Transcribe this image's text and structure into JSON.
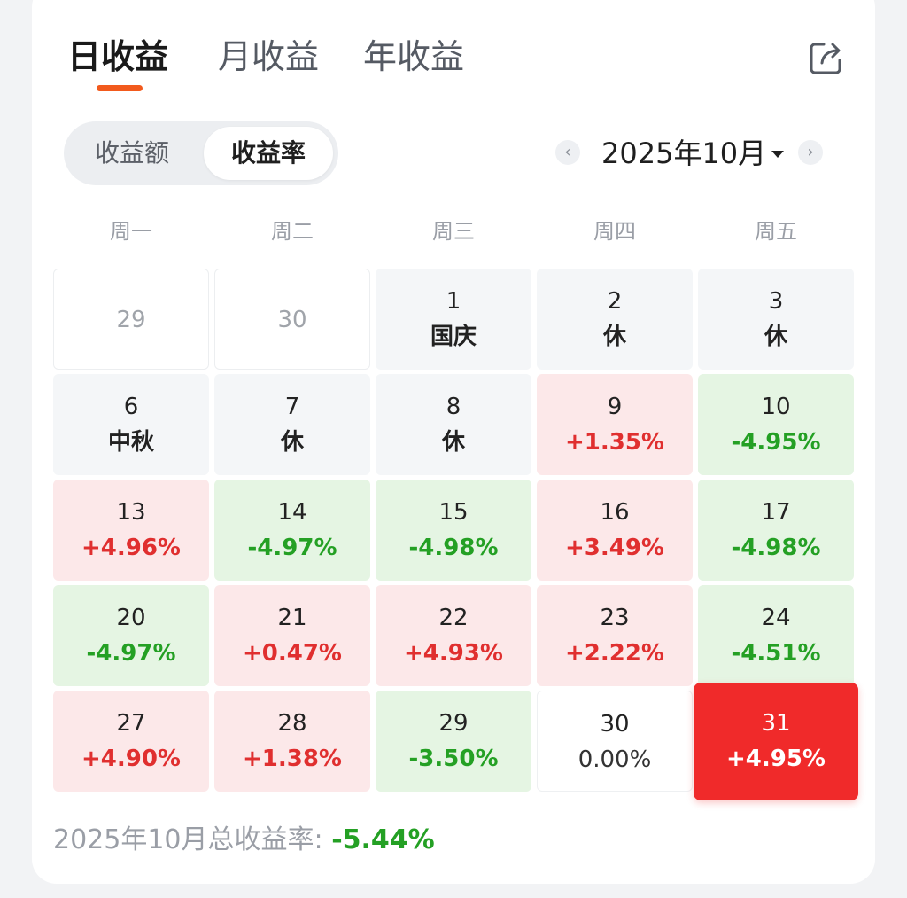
{
  "tabs": [
    {
      "label": "日收益",
      "active": true
    },
    {
      "label": "月收益",
      "active": false
    },
    {
      "label": "年收益",
      "active": false
    }
  ],
  "share_icon": "share-external-icon",
  "segment": {
    "amount_label": "收益额",
    "rate_label": "收益率",
    "selected": "rate"
  },
  "month_nav": {
    "prev_icon": "chevron-left-icon",
    "label": "2025年10月",
    "dropdown_icon": "caret-down-icon",
    "next_icon": "chevron-right-icon"
  },
  "weekdays": [
    "周一",
    "周二",
    "周三",
    "周四",
    "周五"
  ],
  "colors": {
    "up": "#e02f2f",
    "down": "#24a024",
    "up_bg": "#fce8e9",
    "down_bg": "#e5f5e3",
    "selected_bg": "#f02a2a",
    "tab_accent": "#f25a1d"
  },
  "calendar": [
    [
      {
        "day": "29",
        "value": "",
        "kind": "other"
      },
      {
        "day": "30",
        "value": "",
        "kind": "other"
      },
      {
        "day": "1",
        "value": "国庆",
        "kind": "holiday"
      },
      {
        "day": "2",
        "value": "休",
        "kind": "holiday"
      },
      {
        "day": "3",
        "value": "休",
        "kind": "holiday"
      }
    ],
    [
      {
        "day": "6",
        "value": "中秋",
        "kind": "holiday"
      },
      {
        "day": "7",
        "value": "休",
        "kind": "holiday"
      },
      {
        "day": "8",
        "value": "休",
        "kind": "holiday"
      },
      {
        "day": "9",
        "value": "+1.35%",
        "kind": "up"
      },
      {
        "day": "10",
        "value": "-4.95%",
        "kind": "down"
      }
    ],
    [
      {
        "day": "13",
        "value": "+4.96%",
        "kind": "up"
      },
      {
        "day": "14",
        "value": "-4.97%",
        "kind": "down"
      },
      {
        "day": "15",
        "value": "-4.98%",
        "kind": "down"
      },
      {
        "day": "16",
        "value": "+3.49%",
        "kind": "up"
      },
      {
        "day": "17",
        "value": "-4.98%",
        "kind": "down"
      }
    ],
    [
      {
        "day": "20",
        "value": "-4.97%",
        "kind": "down"
      },
      {
        "day": "21",
        "value": "+0.47%",
        "kind": "up"
      },
      {
        "day": "22",
        "value": "+4.93%",
        "kind": "up"
      },
      {
        "day": "23",
        "value": "+2.22%",
        "kind": "up"
      },
      {
        "day": "24",
        "value": "-4.51%",
        "kind": "down"
      }
    ],
    [
      {
        "day": "27",
        "value": "+4.90%",
        "kind": "up"
      },
      {
        "day": "28",
        "value": "+1.38%",
        "kind": "up"
      },
      {
        "day": "29",
        "value": "-3.50%",
        "kind": "down"
      },
      {
        "day": "30",
        "value": "0.00%",
        "kind": "flat"
      },
      {
        "day": "31",
        "value": "+4.95%",
        "kind": "selected"
      }
    ]
  ],
  "summary": {
    "label": "2025年10月总收益率:",
    "value": "-5.44%"
  }
}
